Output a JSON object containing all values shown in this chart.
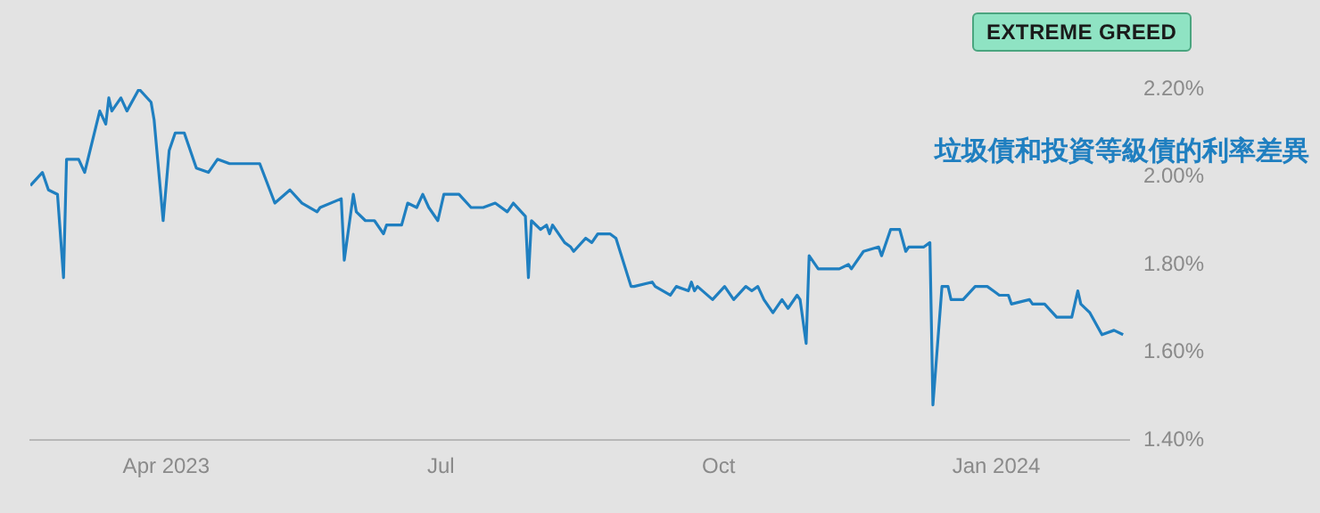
{
  "chart_data": {
    "type": "line",
    "marker": "none",
    "grid": false,
    "legend": false,
    "annotations": [
      "EXTREME GREED"
    ],
    "xlim": [
      "2023-02-15",
      "2024-02-14"
    ],
    "xticks": [
      {
        "value": "2023-04-01",
        "label": "Apr 2023"
      },
      {
        "value": "2023-07-01",
        "label": "Jul"
      },
      {
        "value": "2023-10-01",
        "label": "Oct"
      },
      {
        "value": "2024-01-01",
        "label": "Jan 2024"
      }
    ],
    "ylim": [
      1.4,
      2.2
    ],
    "yticks": [
      {
        "value": 1.4,
        "label": "1.40%"
      },
      {
        "value": 1.6,
        "label": "1.60%"
      },
      {
        "value": 1.8,
        "label": "1.80%"
      },
      {
        "value": 2.0,
        "label": "2.00%"
      },
      {
        "value": 2.2,
        "label": "2.20%"
      }
    ],
    "x": [
      "2023-02-15",
      "2023-02-19",
      "2023-02-21",
      "2023-02-24",
      "2023-02-26",
      "2023-02-27",
      "2023-03-03",
      "2023-03-05",
      "2023-03-10",
      "2023-03-12",
      "2023-03-13",
      "2023-03-14",
      "2023-03-17",
      "2023-03-19",
      "2023-03-23",
      "2023-03-27",
      "2023-03-28",
      "2023-03-31",
      "2023-04-02",
      "2023-04-04",
      "2023-04-07",
      "2023-04-11",
      "2023-04-15",
      "2023-04-18",
      "2023-04-22",
      "2023-04-23",
      "2023-05-02",
      "2023-05-07",
      "2023-05-12",
      "2023-05-16",
      "2023-05-21",
      "2023-05-22",
      "2023-05-29",
      "2023-05-30",
      "2023-06-02",
      "2023-06-03",
      "2023-06-06",
      "2023-06-09",
      "2023-06-12",
      "2023-06-13",
      "2023-06-18",
      "2023-06-20",
      "2023-06-23",
      "2023-06-25",
      "2023-06-27",
      "2023-06-30",
      "2023-07-02",
      "2023-07-07",
      "2023-07-11",
      "2023-07-15",
      "2023-07-19",
      "2023-07-23",
      "2023-07-25",
      "2023-07-29",
      "2023-07-30",
      "2023-07-31",
      "2023-08-03",
      "2023-08-05",
      "2023-08-06",
      "2023-08-07",
      "2023-08-11",
      "2023-08-13",
      "2023-08-14",
      "2023-08-18",
      "2023-08-20",
      "2023-08-22",
      "2023-08-26",
      "2023-08-28",
      "2023-09-02",
      "2023-09-03",
      "2023-09-09",
      "2023-09-10",
      "2023-09-15",
      "2023-09-17",
      "2023-09-21",
      "2023-09-22",
      "2023-09-23",
      "2023-09-24",
      "2023-09-29",
      "2023-10-03",
      "2023-10-06",
      "2023-10-10",
      "2023-10-12",
      "2023-10-14",
      "2023-10-16",
      "2023-10-19",
      "2023-10-22",
      "2023-10-24",
      "2023-10-27",
      "2023-10-28",
      "2023-10-30",
      "2023-10-31",
      "2023-11-03",
      "2023-11-10",
      "2023-11-13",
      "2023-11-14",
      "2023-11-18",
      "2023-11-23",
      "2023-11-24",
      "2023-11-27",
      "2023-11-30",
      "2023-12-02",
      "2023-12-03",
      "2023-12-08",
      "2023-12-10",
      "2023-12-11",
      "2023-12-14",
      "2023-12-15",
      "2023-12-16",
      "2023-12-17",
      "2023-12-21",
      "2023-12-25",
      "2023-12-29",
      "2023-12-31",
      "2024-01-02",
      "2024-01-05",
      "2024-01-06",
      "2024-01-12",
      "2024-01-13",
      "2024-01-17",
      "2024-01-21",
      "2024-01-26",
      "2024-01-28",
      "2024-01-29",
      "2024-02-01",
      "2024-02-05",
      "2024-02-09",
      "2024-02-12"
    ],
    "series": [
      {
        "name": "垃圾債和投資等級債的利率差異",
        "color": "#1f7fc0",
        "values": [
          1.98,
          2.01,
          1.97,
          1.96,
          1.77,
          2.04,
          2.04,
          2.01,
          2.15,
          2.12,
          2.18,
          2.15,
          2.18,
          2.15,
          2.2,
          2.17,
          2.13,
          1.9,
          2.06,
          2.1,
          2.1,
          2.02,
          2.01,
          2.04,
          2.03,
          2.03,
          2.03,
          1.94,
          1.97,
          1.94,
          1.92,
          1.93,
          1.95,
          1.81,
          1.96,
          1.92,
          1.9,
          1.9,
          1.87,
          1.89,
          1.89,
          1.94,
          1.93,
          1.96,
          1.93,
          1.9,
          1.96,
          1.96,
          1.93,
          1.93,
          1.94,
          1.92,
          1.94,
          1.91,
          1.77,
          1.9,
          1.88,
          1.89,
          1.87,
          1.89,
          1.85,
          1.84,
          1.83,
          1.86,
          1.85,
          1.87,
          1.87,
          1.86,
          1.75,
          1.75,
          1.76,
          1.75,
          1.73,
          1.75,
          1.74,
          1.76,
          1.74,
          1.75,
          1.72,
          1.75,
          1.72,
          1.75,
          1.74,
          1.75,
          1.72,
          1.69,
          1.72,
          1.7,
          1.73,
          1.72,
          1.62,
          1.82,
          1.79,
          1.79,
          1.8,
          1.79,
          1.83,
          1.84,
          1.82,
          1.88,
          1.88,
          1.83,
          1.84,
          1.84,
          1.85,
          1.48,
          1.75,
          1.75,
          1.75,
          1.72,
          1.72,
          1.75,
          1.75,
          1.74,
          1.73,
          1.73,
          1.71,
          1.72,
          1.71,
          1.71,
          1.68,
          1.68,
          1.74,
          1.71,
          1.69,
          1.64,
          1.65,
          1.64
        ]
      }
    ]
  }
}
